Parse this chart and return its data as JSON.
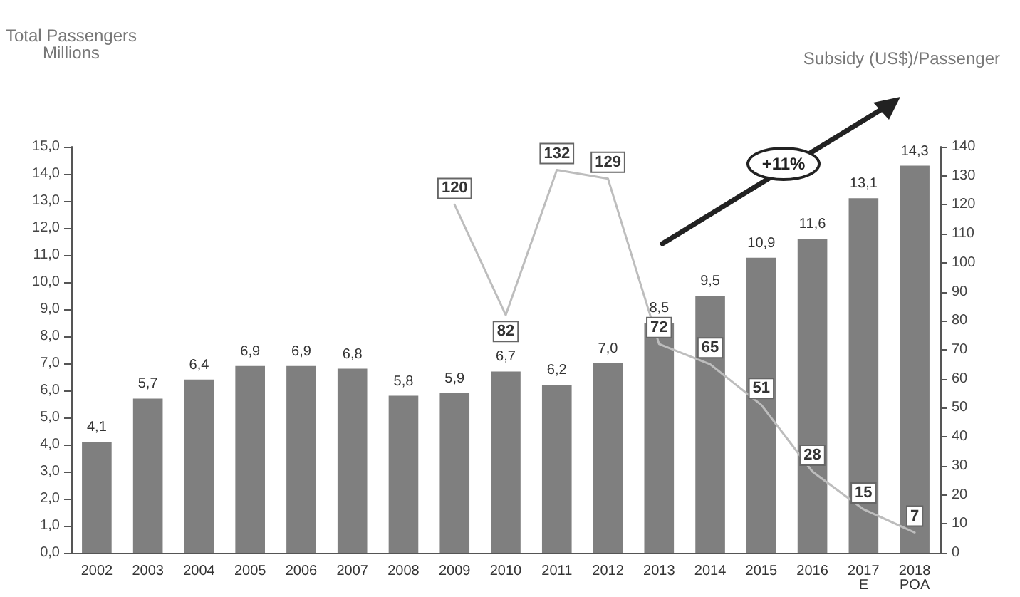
{
  "chart_data": {
    "type": "bar",
    "ylabel": "Total Passengers\nMillions",
    "y2label": "Subsidy (US$)/Passenger",
    "categories": [
      "2002",
      "2003",
      "2004",
      "2005",
      "2006",
      "2007",
      "2008",
      "2009",
      "2010",
      "2011",
      "2012",
      "2013",
      "2014",
      "2015",
      "2016",
      "2017\nE",
      "2018\nPOA"
    ],
    "series": [
      {
        "color": "#7f7f7f",
        "values": [
          4.1,
          5.7,
          6.4,
          6.9,
          6.9,
          6.8,
          5.8,
          5.9,
          6.7,
          6.2,
          7.0,
          8.5,
          9.5,
          10.9,
          11.6,
          13.1,
          14.3
        ],
        "value_labels": [
          "4,1",
          "5,7",
          "6,4",
          "6,9",
          "6,9",
          "6,8",
          "5,8",
          "5,9",
          "6,7",
          "6,2",
          "7,0",
          "8,5",
          "9,5",
          "10,9",
          "11,6",
          "13,1",
          "14,3"
        ]
      },
      {
        "type": "line",
        "axis": "y2",
        "color": "#bdbdbd",
        "values": [
          null,
          null,
          null,
          null,
          null,
          null,
          null,
          120,
          82,
          132,
          129,
          72,
          65,
          51,
          28,
          15,
          7
        ],
        "value_labels": [
          null,
          null,
          null,
          null,
          null,
          null,
          null,
          "120",
          "82",
          "132",
          "129",
          "72",
          "65",
          "51",
          "28",
          "15",
          "7"
        ]
      }
    ],
    "ylim": [
      0,
      15
    ],
    "yticks": [
      {
        "value": 0,
        "label": "0,0"
      },
      {
        "value": 1,
        "label": "1,0"
      },
      {
        "value": 2,
        "label": "2,0"
      },
      {
        "value": 3,
        "label": "3,0"
      },
      {
        "value": 4,
        "label": "4,0"
      },
      {
        "value": 5,
        "label": "5,0"
      },
      {
        "value": 6,
        "label": "6,0"
      },
      {
        "value": 7,
        "label": "7,0"
      },
      {
        "value": 8,
        "label": "8,0"
      },
      {
        "value": 9,
        "label": "9,0"
      },
      {
        "value": 10,
        "label": "10,0"
      },
      {
        "value": 11,
        "label": "11,0"
      },
      {
        "value": 12,
        "label": "12,0"
      },
      {
        "value": 13,
        "label": "13,0"
      },
      {
        "value": 14,
        "label": "14,0"
      },
      {
        "value": 15,
        "label": "15,0"
      }
    ],
    "y2lim": [
      0,
      140
    ],
    "y2ticks": [
      0,
      10,
      20,
      30,
      40,
      50,
      60,
      70,
      80,
      90,
      100,
      110,
      120,
      130,
      140
    ],
    "annotations": [
      "+11%"
    ],
    "grid": false,
    "marker": "none",
    "line_style": "solid"
  }
}
